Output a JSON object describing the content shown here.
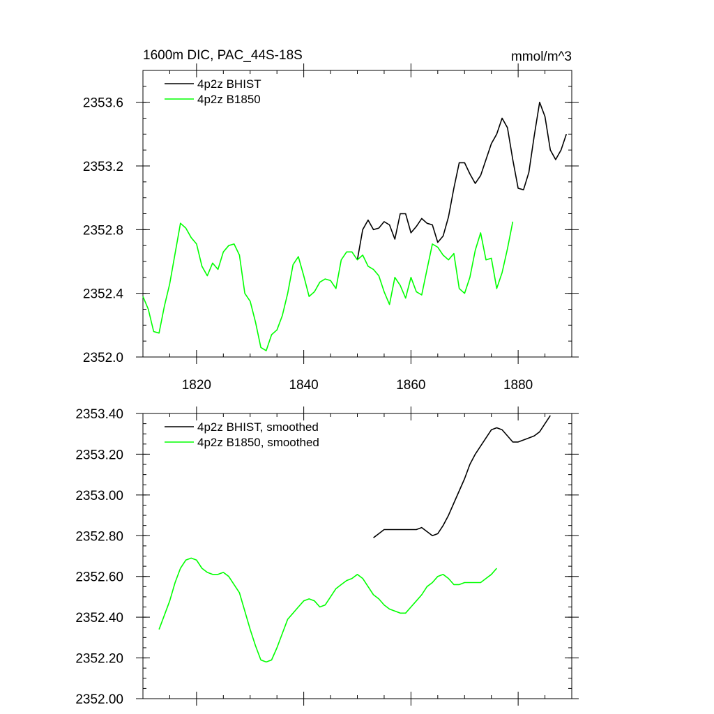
{
  "colors": {
    "bhist": "#000000",
    "b1850": "#00ff00"
  },
  "chart_data": [
    {
      "type": "line",
      "title": "1600m DIC, PAC_44S-18S",
      "units": "mmol/m^3",
      "xlim": [
        1810,
        1890
      ],
      "ylim": [
        2352.0,
        2353.8
      ],
      "xticks": [
        {
          "value": 1820,
          "label": "1820"
        },
        {
          "value": 1840,
          "label": "1840"
        },
        {
          "value": 1860,
          "label": "1860"
        },
        {
          "value": 1880,
          "label": "1880"
        }
      ],
      "yticks": [
        {
          "value": 2352.0,
          "label": "2352.0"
        },
        {
          "value": 2352.4,
          "label": "2352.4"
        },
        {
          "value": 2352.8,
          "label": "2352.8"
        },
        {
          "value": 2353.2,
          "label": "2353.2"
        },
        {
          "value": 2353.6,
          "label": "2353.6"
        }
      ],
      "legend_position": "top-left",
      "series": [
        {
          "name": "4p2z BHIST",
          "color": "black",
          "x": [
            1850,
            1851,
            1852,
            1853,
            1854,
            1855,
            1856,
            1857,
            1858,
            1859,
            1860,
            1861,
            1862,
            1863,
            1864,
            1865,
            1866,
            1867,
            1868,
            1869,
            1870,
            1871,
            1872,
            1873,
            1874,
            1875,
            1876,
            1877,
            1878,
            1879,
            1880,
            1881,
            1882,
            1883,
            1884,
            1885,
            1886,
            1887,
            1888,
            1889
          ],
          "y": [
            2352.61,
            2352.8,
            2352.86,
            2352.8,
            2352.81,
            2352.85,
            2352.83,
            2352.74,
            2352.9,
            2352.9,
            2352.78,
            2352.82,
            2352.87,
            2352.84,
            2352.83,
            2352.72,
            2352.76,
            2352.88,
            2353.06,
            2353.22,
            2353.22,
            2353.15,
            2353.09,
            2353.14,
            2353.24,
            2353.34,
            2353.4,
            2353.5,
            2353.44,
            2353.24,
            2353.06,
            2353.05,
            2353.16,
            2353.39,
            2353.6,
            2353.51,
            2353.3,
            2353.24,
            2353.3,
            2353.4
          ]
        },
        {
          "name": "4p2z B1850",
          "color": "green",
          "x": [
            1810,
            1811,
            1812,
            1813,
            1814,
            1815,
            1816,
            1817,
            1818,
            1819,
            1820,
            1821,
            1822,
            1823,
            1824,
            1825,
            1826,
            1827,
            1828,
            1829,
            1830,
            1831,
            1832,
            1833,
            1834,
            1835,
            1836,
            1837,
            1838,
            1839,
            1840,
            1841,
            1842,
            1843,
            1844,
            1845,
            1846,
            1847,
            1848,
            1849,
            1850,
            1851,
            1852,
            1853,
            1854,
            1855,
            1856,
            1857,
            1858,
            1859,
            1860,
            1861,
            1862,
            1863,
            1864,
            1865,
            1866,
            1867,
            1868,
            1869,
            1870,
            1871,
            1872,
            1873,
            1874,
            1875,
            1876,
            1877,
            1878,
            1879
          ],
          "y": [
            2352.38,
            2352.3,
            2352.16,
            2352.15,
            2352.32,
            2352.46,
            2352.65,
            2352.84,
            2352.81,
            2352.75,
            2352.71,
            2352.57,
            2352.51,
            2352.59,
            2352.55,
            2352.66,
            2352.7,
            2352.71,
            2352.64,
            2352.4,
            2352.35,
            2352.22,
            2352.06,
            2352.04,
            2352.14,
            2352.17,
            2352.26,
            2352.4,
            2352.58,
            2352.63,
            2352.51,
            2352.38,
            2352.41,
            2352.47,
            2352.49,
            2352.48,
            2352.43,
            2352.61,
            2352.66,
            2352.66,
            2352.61,
            2352.64,
            2352.57,
            2352.55,
            2352.51,
            2352.41,
            2352.33,
            2352.5,
            2352.45,
            2352.37,
            2352.5,
            2352.41,
            2352.39,
            2352.55,
            2352.71,
            2352.69,
            2352.64,
            2352.61,
            2352.65,
            2352.43,
            2352.4,
            2352.5,
            2352.67,
            2352.78,
            2352.61,
            2352.62,
            2352.43,
            2352.53,
            2352.68,
            2352.85
          ]
        }
      ]
    },
    {
      "type": "line",
      "title": "",
      "xlim": [
        1810,
        1890
      ],
      "ylim": [
        2352.0,
        2353.4
      ],
      "xticks": [
        {
          "value": 1820,
          "label": ""
        },
        {
          "value": 1840,
          "label": ""
        },
        {
          "value": 1860,
          "label": ""
        },
        {
          "value": 1880,
          "label": ""
        }
      ],
      "yticks": [
        {
          "value": 2352.0,
          "label": "2352.00"
        },
        {
          "value": 2352.2,
          "label": "2352.20"
        },
        {
          "value": 2352.4,
          "label": "2352.40"
        },
        {
          "value": 2352.6,
          "label": "2352.60"
        },
        {
          "value": 2352.8,
          "label": "2352.80"
        },
        {
          "value": 2353.0,
          "label": "2353.00"
        },
        {
          "value": 2353.2,
          "label": "2353.20"
        },
        {
          "value": 2353.4,
          "label": "2353.40"
        }
      ],
      "legend_position": "top-left",
      "series": [
        {
          "name": "4p2z BHIST, smoothed",
          "color": "black",
          "x": [
            1853,
            1854,
            1855,
            1856,
            1857,
            1858,
            1859,
            1860,
            1861,
            1862,
            1863,
            1864,
            1865,
            1866,
            1867,
            1868,
            1869,
            1870,
            1871,
            1872,
            1873,
            1874,
            1875,
            1876,
            1877,
            1878,
            1879,
            1880,
            1881,
            1882,
            1883,
            1884,
            1885,
            1886
          ],
          "y": [
            2352.79,
            2352.81,
            2352.83,
            2352.83,
            2352.83,
            2352.83,
            2352.83,
            2352.83,
            2352.83,
            2352.84,
            2352.82,
            2352.8,
            2352.81,
            2352.85,
            2352.9,
            2352.96,
            2353.02,
            2353.08,
            2353.15,
            2353.2,
            2353.24,
            2353.28,
            2353.32,
            2353.33,
            2353.32,
            2353.29,
            2353.26,
            2353.26,
            2353.27,
            2353.28,
            2353.29,
            2353.31,
            2353.35,
            2353.39
          ]
        },
        {
          "name": "4p2z B1850, smoothed",
          "color": "green",
          "x": [
            1813,
            1814,
            1815,
            1816,
            1817,
            1818,
            1819,
            1820,
            1821,
            1822,
            1823,
            1824,
            1825,
            1826,
            1827,
            1828,
            1829,
            1830,
            1831,
            1832,
            1833,
            1834,
            1835,
            1836,
            1837,
            1838,
            1839,
            1840,
            1841,
            1842,
            1843,
            1844,
            1845,
            1846,
            1847,
            1848,
            1849,
            1850,
            1851,
            1852,
            1853,
            1854,
            1855,
            1856,
            1857,
            1858,
            1859,
            1860,
            1861,
            1862,
            1863,
            1864,
            1865,
            1866,
            1867,
            1868,
            1869,
            1870,
            1871,
            1872,
            1873,
            1874,
            1875,
            1876
          ],
          "y": [
            2352.34,
            2352.41,
            2352.48,
            2352.57,
            2352.64,
            2352.68,
            2352.69,
            2352.68,
            2352.64,
            2352.62,
            2352.61,
            2352.61,
            2352.62,
            2352.6,
            2352.56,
            2352.52,
            2352.43,
            2352.34,
            2352.26,
            2352.19,
            2352.18,
            2352.19,
            2352.25,
            2352.32,
            2352.39,
            2352.42,
            2352.45,
            2352.48,
            2352.49,
            2352.48,
            2352.45,
            2352.46,
            2352.5,
            2352.54,
            2352.56,
            2352.58,
            2352.59,
            2352.61,
            2352.59,
            2352.55,
            2352.51,
            2352.49,
            2352.46,
            2352.44,
            2352.43,
            2352.42,
            2352.42,
            2352.45,
            2352.48,
            2352.51,
            2352.55,
            2352.57,
            2352.6,
            2352.61,
            2352.59,
            2352.56,
            2352.56,
            2352.57,
            2352.57,
            2352.57,
            2352.57,
            2352.59,
            2352.61,
            2352.64
          ]
        }
      ]
    }
  ]
}
